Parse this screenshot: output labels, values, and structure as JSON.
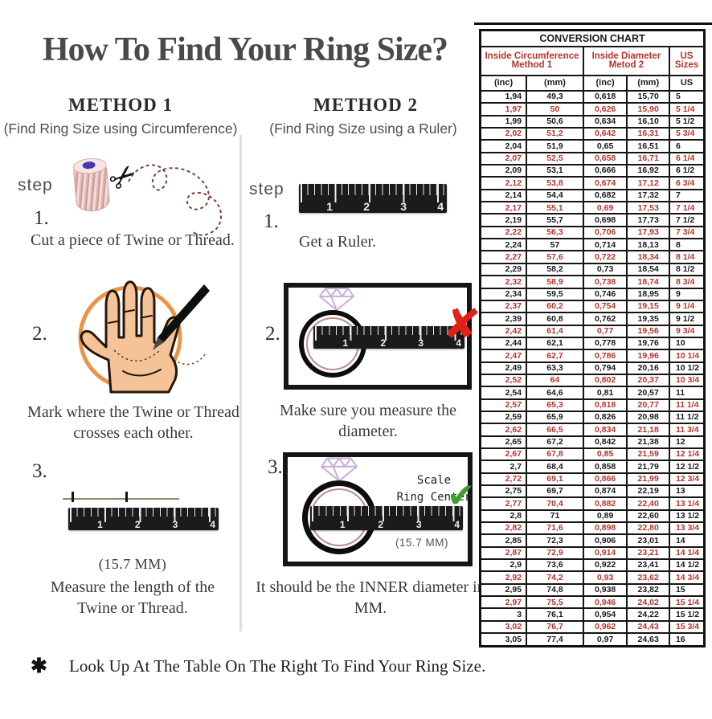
{
  "page": {
    "title": "How To Find Your Ring Size?",
    "footnote_symbol": "✱",
    "footnote": "Look Up At The Table On The Right To Find Your Ring Size."
  },
  "icons": {
    "scissors": "✂",
    "x_mark": "✘",
    "check": "✔"
  },
  "ruler": {
    "numbers": [
      "1",
      "2",
      "3",
      "4"
    ]
  },
  "method1": {
    "title": "METHOD 1",
    "subtitle": "(Find Ring Size using Circumference)",
    "step_label": "step",
    "step1": {
      "num": "1.",
      "caption": "Cut a piece of Twine or Thread."
    },
    "step2": {
      "num": "2.",
      "caption": "Mark where the Twine or Thread crosses each other."
    },
    "step3": {
      "num": "3.",
      "length_note": "(15.7 MM)",
      "caption": "Measure the length of the Twine or Thread."
    }
  },
  "method2": {
    "title": "METHOD 2",
    "subtitle": "(Find Ring Size using a Ruler)",
    "step_label": "step",
    "step1": {
      "num": "1.",
      "caption": "Get a Ruler."
    },
    "step2": {
      "num": "2.",
      "caption": "Make sure you measure the diameter."
    },
    "step3": {
      "num": "3.",
      "scale_line1": "Scale",
      "scale_line2": "Ring Center",
      "length_note": "(15.7 MM)",
      "caption": "It should be the INNER diameter in MM."
    }
  },
  "chart": {
    "title": "CONVERSION CHART",
    "col_groups": [
      {
        "line1": "Inside Circumference",
        "line2": "Method 1"
      },
      {
        "line1": "Inside Diameter",
        "line2": "Metod 2"
      },
      {
        "line1": "US Sizes",
        "line2": ""
      }
    ],
    "units": [
      "(inc)",
      "(mm)",
      "(inc)",
      "(mm)",
      "US"
    ],
    "rows": [
      [
        "1,94",
        "49,3",
        "0,618",
        "15,70",
        "5"
      ],
      [
        "1,97",
        "50",
        "0,626",
        "15,90",
        "5 1/4"
      ],
      [
        "1,99",
        "50,6",
        "0,634",
        "16,10",
        "5 1/2"
      ],
      [
        "2,02",
        "51,2",
        "0,642",
        "16,31",
        "5 3/4"
      ],
      [
        "2,04",
        "51,9",
        "0,65",
        "16,51",
        "6"
      ],
      [
        "2,07",
        "52,5",
        "0,658",
        "16,71",
        "6 1/4"
      ],
      [
        "2,09",
        "53,1",
        "0,666",
        "16,92",
        "6 1/2"
      ],
      [
        "2,12",
        "53,8",
        "0,674",
        "17,12",
        "6 3/4"
      ],
      [
        "2,14",
        "54,4",
        "0,682",
        "17,32",
        "7"
      ],
      [
        "2,17",
        "55,1",
        "0,69",
        "17,53",
        "7 1/4"
      ],
      [
        "2,19",
        "55,7",
        "0,698",
        "17,73",
        "7 1/2"
      ],
      [
        "2,22",
        "56,3",
        "0,706",
        "17,93",
        "7 3/4"
      ],
      [
        "2,24",
        "57",
        "0,714",
        "18,13",
        "8"
      ],
      [
        "2,27",
        "57,6",
        "0,722",
        "18,34",
        "8 1/4"
      ],
      [
        "2,29",
        "58,2",
        "0,73",
        "18,54",
        "8 1/2"
      ],
      [
        "2,32",
        "58,9",
        "0,738",
        "18,74",
        "8 3/4"
      ],
      [
        "2,34",
        "59,5",
        "0,746",
        "18,95",
        "9"
      ],
      [
        "2,37",
        "60,2",
        "0,754",
        "19,15",
        "9 1/4"
      ],
      [
        "2,39",
        "60,8",
        "0,762",
        "19,35",
        "9 1/2"
      ],
      [
        "2,42",
        "61,4",
        "0,77",
        "19,56",
        "9 3/4"
      ],
      [
        "2,44",
        "62,1",
        "0,778",
        "19,76",
        "10"
      ],
      [
        "2,47",
        "62,7",
        "0,786",
        "19,96",
        "10 1/4"
      ],
      [
        "2,49",
        "63,3",
        "0,794",
        "20,16",
        "10 1/2"
      ],
      [
        "2,52",
        "64",
        "0,802",
        "20,37",
        "10 3/4"
      ],
      [
        "2,54",
        "64,6",
        "0,81",
        "20,57",
        "11"
      ],
      [
        "2,57",
        "65,3",
        "0,818",
        "20,77",
        "11 1/4"
      ],
      [
        "2,59",
        "65,9",
        "0,826",
        "20,98",
        "11 1/2"
      ],
      [
        "2,62",
        "66,5",
        "0,834",
        "21,18",
        "11 3/4"
      ],
      [
        "2,65",
        "67,2",
        "0,842",
        "21,38",
        "12"
      ],
      [
        "2,67",
        "67,8",
        "0,85",
        "21,59",
        "12 1/4"
      ],
      [
        "2,7",
        "68,4",
        "0,858",
        "21,79",
        "12 1/2"
      ],
      [
        "2,72",
        "69,1",
        "0,866",
        "21,99",
        "12 3/4"
      ],
      [
        "2,75",
        "69,7",
        "0,874",
        "22,19",
        "13"
      ],
      [
        "2,77",
        "70,4",
        "0,882",
        "22,40",
        "13 1/4"
      ],
      [
        "2,8",
        "71",
        "0,89",
        "22,60",
        "13 1/2"
      ],
      [
        "2,82",
        "71,6",
        "0,898",
        "22,80",
        "13 3/4"
      ],
      [
        "2,85",
        "72,3",
        "0,906",
        "23,01",
        "14"
      ],
      [
        "2,87",
        "72,9",
        "0,914",
        "23,21",
        "14 1/4"
      ],
      [
        "2,9",
        "73,6",
        "0,922",
        "23,41",
        "14 1/2"
      ],
      [
        "2,92",
        "74,2",
        "0,93",
        "23,62",
        "14 3/4"
      ],
      [
        "2,95",
        "74,8",
        "0,938",
        "23,82",
        "15"
      ],
      [
        "2,97",
        "75,5",
        "0,946",
        "24,02",
        "15 1/4"
      ],
      [
        "3",
        "76,1",
        "0,954",
        "24,22",
        "15 1/2"
      ],
      [
        "3,02",
        "76,7",
        "0,962",
        "24,43",
        "15 3/4"
      ],
      [
        "3,05",
        "77,4",
        "0,97",
        "24,63",
        "16"
      ]
    ]
  },
  "colors": {
    "table_red": "#b5352b",
    "check_green": "#3f9e2f",
    "x_red": "#e02117",
    "circle_orange": "#ea9447"
  }
}
